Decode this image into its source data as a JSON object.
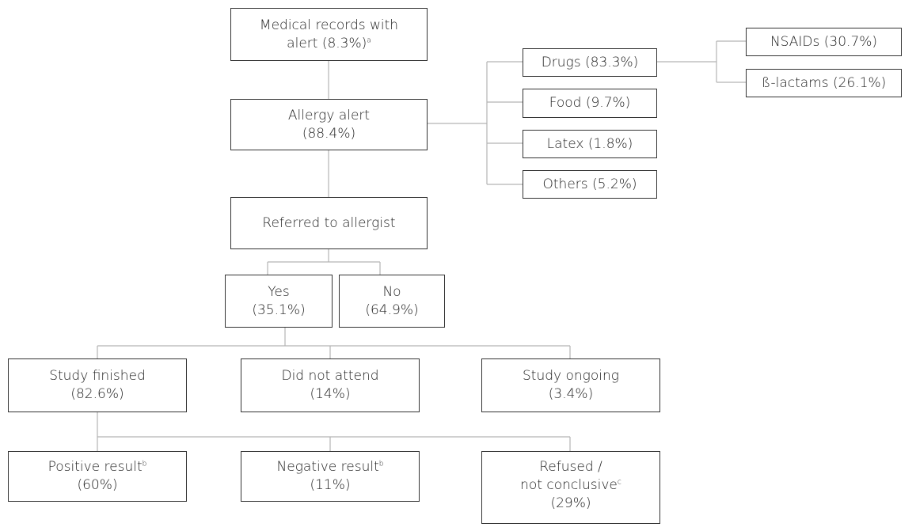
{
  "nodes": {
    "records": {
      "line1": "Medical records with",
      "line2": "alert (8.3%)",
      "sup": "a"
    },
    "allergy": {
      "line1": "Allergy alert",
      "line2": "(88.4%)"
    },
    "drugs": {
      "line1": "Drugs (83.3%)"
    },
    "food": {
      "line1": "Food (9.7%)"
    },
    "latex": {
      "line1": "Latex (1.8%)"
    },
    "others": {
      "line1": "Others (5.2%)"
    },
    "nsaids": {
      "line1": "NSAIDs (30.7%)"
    },
    "blactams": {
      "line1": "ß-lactams (26.1%)"
    },
    "referred": {
      "line1": "Referred to allergist"
    },
    "yes": {
      "line1": "Yes",
      "line2": "(35.1%)"
    },
    "no": {
      "line1": "No",
      "line2": "(64.9%)"
    },
    "finished": {
      "line1": "Study finished",
      "line2": "(82.6%)"
    },
    "notattend": {
      "line1": "Did not attend",
      "line2": "(14%)"
    },
    "ongoing": {
      "line1": "Study ongoing",
      "line2": "(3.4%)"
    },
    "positive": {
      "line1": "Positive result",
      "sup": "b",
      "line2": "(60%)"
    },
    "negative": {
      "line1": "Negative result",
      "sup": "b",
      "line2": "(11%)"
    },
    "refused": {
      "line1": "Refused /",
      "line2": "not conclusive",
      "sup": "c",
      "line3": "(29%)"
    }
  },
  "colors": {
    "line": "#b3b3b3",
    "border": "#333333",
    "text": "#222222"
  }
}
